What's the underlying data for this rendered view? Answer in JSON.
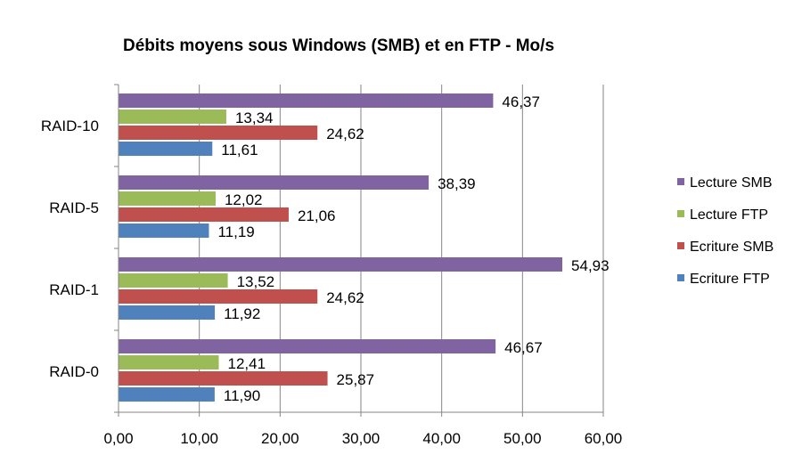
{
  "chart_data": {
    "type": "bar",
    "orientation": "horizontal",
    "title": "Débits moyens sous Windows (SMB) et en FTP - Mo/s",
    "xlabel": "",
    "ylabel": "",
    "xlim": [
      0,
      60
    ],
    "x_ticks": [
      0,
      10,
      20,
      30,
      40,
      50,
      60
    ],
    "x_tick_labels": [
      "0,00",
      "10,00",
      "20,00",
      "30,00",
      "40,00",
      "50,00",
      "60,00"
    ],
    "grid": true,
    "legend_position": "right",
    "categories": [
      "RAID-10",
      "RAID-5",
      "RAID-1",
      "RAID-0"
    ],
    "series": [
      {
        "name": "Lecture SMB",
        "color": "#8064A2",
        "values": [
          46.37,
          38.39,
          54.93,
          46.67
        ],
        "labels": [
          "46,37",
          "38,39",
          "54,93",
          "46,67"
        ]
      },
      {
        "name": "Lecture FTP",
        "color": "#9BBB59",
        "values": [
          13.34,
          12.02,
          13.52,
          12.41
        ],
        "labels": [
          "13,34",
          "12,02",
          "13,52",
          "12,41"
        ]
      },
      {
        "name": "Ecriture SMB",
        "color": "#C0504D",
        "values": [
          24.62,
          21.06,
          24.62,
          25.87
        ],
        "labels": [
          "24,62",
          "21,06",
          "24,62",
          "25,87"
        ]
      },
      {
        "name": "Ecriture FTP",
        "color": "#4F81BD",
        "values": [
          11.61,
          11.19,
          11.92,
          11.9
        ],
        "labels": [
          "11,61",
          "11,19",
          "11,92",
          "11,90"
        ]
      }
    ]
  }
}
